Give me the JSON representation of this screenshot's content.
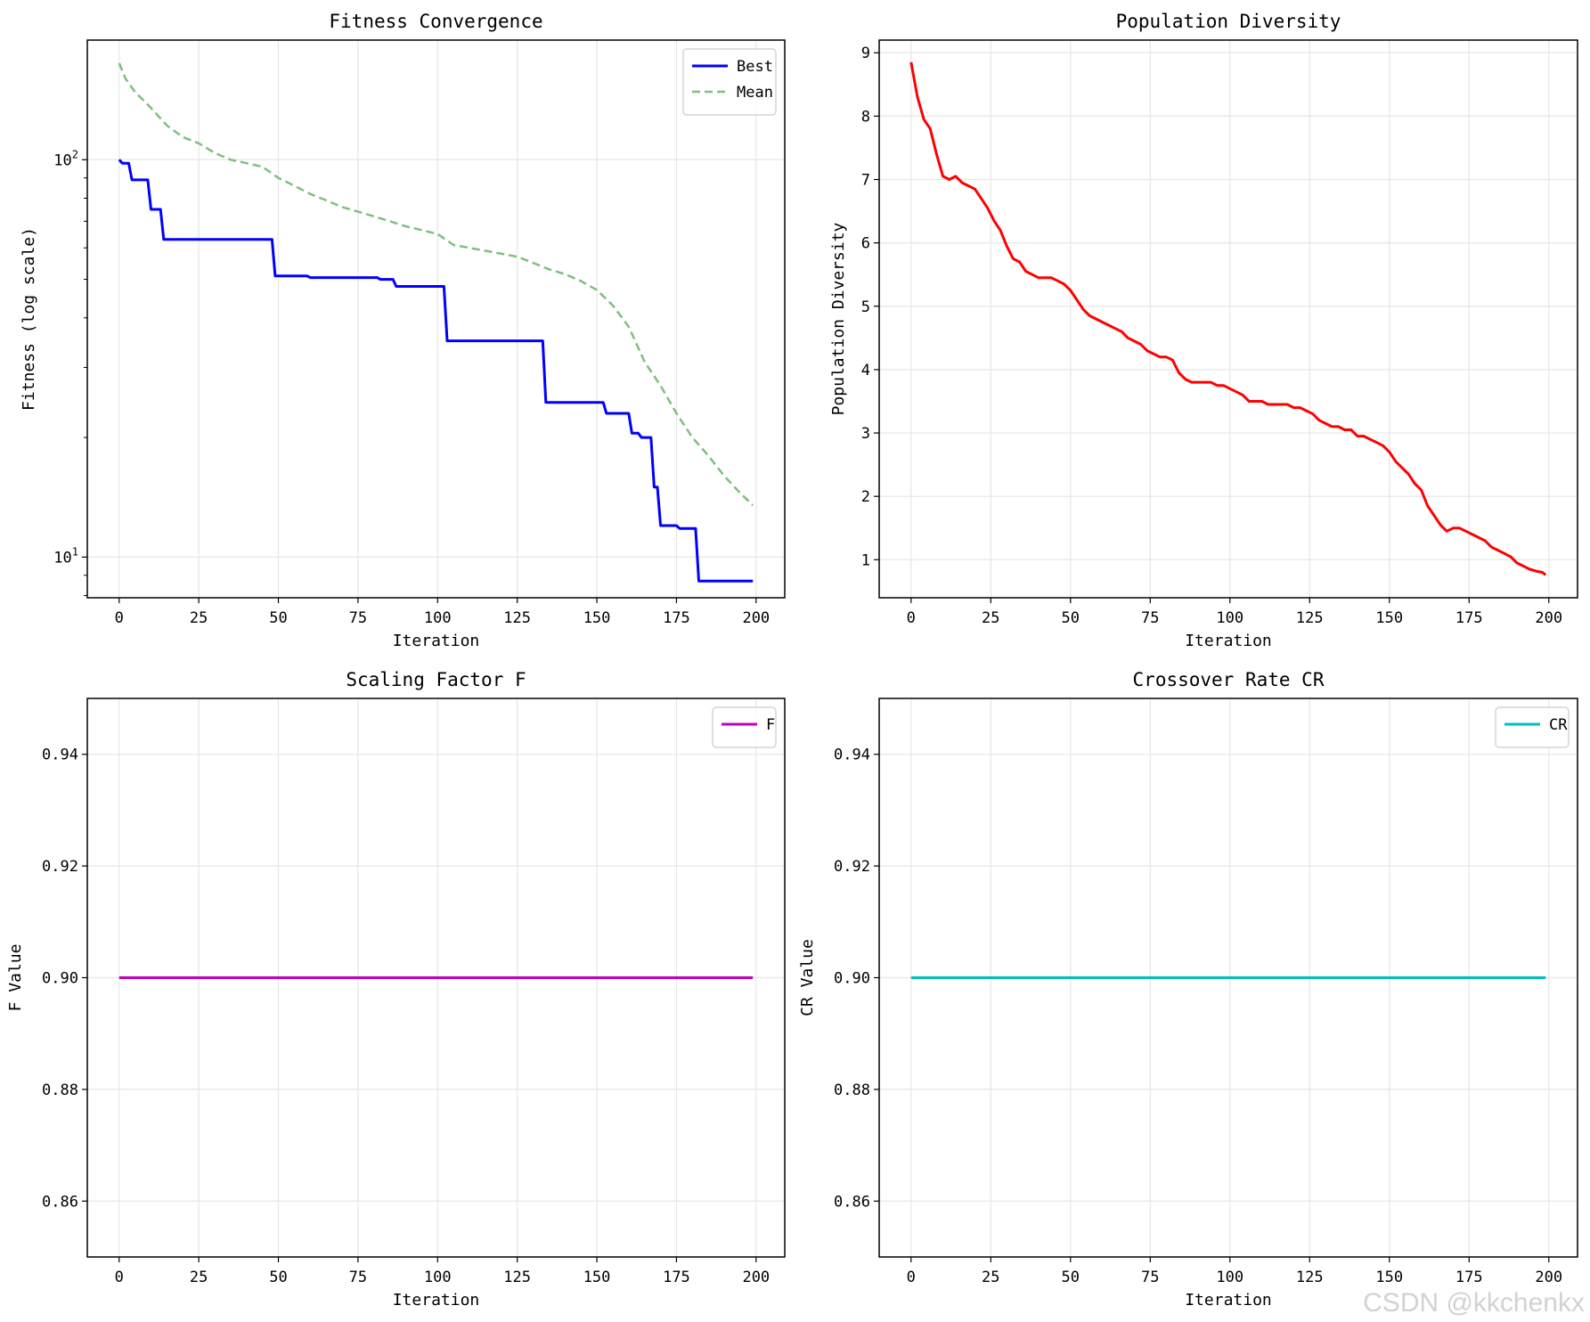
{
  "chart_data": [
    {
      "id": "fitness",
      "type": "line",
      "title": "Fitness Convergence",
      "xlabel": "Iteration",
      "ylabel": "Fitness (log scale)",
      "yscale": "log",
      "xlim": [
        -10,
        209
      ],
      "ylim": [
        7.9,
        200
      ],
      "xticks": [
        0,
        25,
        50,
        75,
        100,
        125,
        150,
        175,
        200
      ],
      "yticks": [
        10,
        100
      ],
      "ytick_labels": [
        {
          "base": "10",
          "exp": "1"
        },
        {
          "base": "10",
          "exp": "2"
        }
      ],
      "legend": "top-right",
      "grid": true,
      "series": [
        {
          "name": "Best",
          "color": "#0000ff",
          "style": "solid",
          "step": true,
          "x": [
            0,
            1,
            3,
            4,
            9,
            10,
            13,
            14,
            48,
            49,
            59,
            60,
            81,
            82,
            86,
            87,
            102,
            103,
            133,
            134,
            152,
            153,
            160,
            161,
            163,
            164,
            167,
            168,
            169,
            170,
            175,
            176,
            181,
            182,
            199
          ],
          "y": [
            100,
            98,
            98,
            89,
            89,
            75,
            75,
            63,
            63,
            51,
            51,
            50.5,
            50.5,
            50,
            50,
            48,
            48,
            35,
            35,
            24.5,
            24.5,
            23,
            23,
            20.5,
            20.5,
            20,
            20,
            15,
            15,
            12,
            12,
            11.8,
            11.8,
            8.7,
            8.7
          ]
        },
        {
          "name": "Mean",
          "color": "#7fbf7f",
          "style": "dashed",
          "step": false,
          "x": [
            0,
            2,
            5,
            10,
            15,
            20,
            25,
            30,
            35,
            40,
            45,
            50,
            55,
            60,
            65,
            70,
            75,
            80,
            85,
            90,
            95,
            100,
            105,
            110,
            115,
            120,
            125,
            130,
            135,
            140,
            145,
            150,
            155,
            160,
            165,
            170,
            175,
            180,
            185,
            190,
            195,
            199
          ],
          "y": [
            175,
            160,
            148,
            135,
            122,
            114,
            110,
            104,
            100,
            98,
            96,
            90,
            86,
            82,
            79,
            76,
            74,
            72,
            70,
            68,
            66.5,
            65,
            61,
            60,
            59,
            58,
            57,
            55,
            53,
            51.5,
            49.5,
            47,
            43,
            38,
            31,
            27,
            23,
            20,
            18,
            16,
            14.5,
            13.5
          ]
        }
      ]
    },
    {
      "id": "diversity",
      "type": "line",
      "title": "Population Diversity",
      "xlabel": "Iteration",
      "ylabel": "Population Diversity",
      "xlim": [
        -10,
        209
      ],
      "ylim": [
        0.4,
        9.2
      ],
      "xticks": [
        0,
        25,
        50,
        75,
        100,
        125,
        150,
        175,
        200
      ],
      "yticks": [
        1,
        2,
        3,
        4,
        5,
        6,
        7,
        8,
        9
      ],
      "grid": true,
      "series": [
        {
          "name": "Population Diversity",
          "color": "#ff0000",
          "style": "solid",
          "x": [
            0,
            2,
            4,
            6,
            8,
            10,
            12,
            14,
            16,
            18,
            20,
            22,
            24,
            26,
            28,
            30,
            32,
            34,
            36,
            38,
            40,
            42,
            44,
            46,
            48,
            50,
            52,
            54,
            56,
            58,
            60,
            62,
            64,
            66,
            68,
            70,
            72,
            74,
            76,
            78,
            80,
            82,
            84,
            86,
            88,
            90,
            92,
            94,
            96,
            98,
            100,
            102,
            104,
            106,
            108,
            110,
            112,
            114,
            116,
            118,
            120,
            122,
            124,
            126,
            128,
            130,
            132,
            134,
            136,
            138,
            140,
            142,
            144,
            146,
            148,
            150,
            152,
            154,
            156,
            158,
            160,
            162,
            164,
            166,
            168,
            170,
            172,
            174,
            176,
            178,
            180,
            182,
            184,
            186,
            188,
            190,
            192,
            194,
            196,
            198,
            199
          ],
          "y": [
            8.85,
            8.3,
            7.95,
            7.8,
            7.4,
            7.05,
            7.0,
            7.05,
            6.95,
            6.9,
            6.85,
            6.7,
            6.55,
            6.35,
            6.2,
            5.95,
            5.75,
            5.7,
            5.55,
            5.5,
            5.45,
            5.45,
            5.45,
            5.4,
            5.35,
            5.25,
            5.1,
            4.95,
            4.85,
            4.8,
            4.75,
            4.7,
            4.65,
            4.6,
            4.5,
            4.45,
            4.4,
            4.3,
            4.25,
            4.2,
            4.2,
            4.15,
            3.95,
            3.85,
            3.8,
            3.8,
            3.8,
            3.8,
            3.75,
            3.75,
            3.7,
            3.65,
            3.6,
            3.5,
            3.5,
            3.5,
            3.45,
            3.45,
            3.45,
            3.45,
            3.4,
            3.4,
            3.35,
            3.3,
            3.2,
            3.15,
            3.1,
            3.1,
            3.05,
            3.05,
            2.95,
            2.95,
            2.9,
            2.85,
            2.8,
            2.7,
            2.55,
            2.45,
            2.35,
            2.2,
            2.1,
            1.85,
            1.7,
            1.55,
            1.45,
            1.5,
            1.5,
            1.45,
            1.4,
            1.35,
            1.3,
            1.2,
            1.15,
            1.1,
            1.05,
            0.95,
            0.9,
            0.85,
            0.82,
            0.8,
            0.76
          ]
        }
      ]
    },
    {
      "id": "scaling",
      "type": "line",
      "title": "Scaling Factor F",
      "xlabel": "Iteration",
      "ylabel": "F Value",
      "xlim": [
        -10,
        209
      ],
      "ylim": [
        0.85,
        0.95
      ],
      "xticks": [
        0,
        25,
        50,
        75,
        100,
        125,
        150,
        175,
        200
      ],
      "yticks": [
        0.86,
        0.88,
        0.9,
        0.92,
        0.94
      ],
      "ytick_labels": [
        "0.86",
        "0.88",
        "0.90",
        "0.92",
        "0.94"
      ],
      "legend": "top-right",
      "grid": true,
      "series": [
        {
          "name": "F",
          "color": "#bf00bf",
          "style": "solid",
          "x": [
            0,
            199
          ],
          "y": [
            0.9,
            0.9
          ]
        }
      ]
    },
    {
      "id": "crossover",
      "type": "line",
      "title": "Crossover Rate CR",
      "xlabel": "Iteration",
      "ylabel": "CR Value",
      "xlim": [
        -10,
        209
      ],
      "ylim": [
        0.85,
        0.95
      ],
      "xticks": [
        0,
        25,
        50,
        75,
        100,
        125,
        150,
        175,
        200
      ],
      "yticks": [
        0.86,
        0.88,
        0.9,
        0.92,
        0.94
      ],
      "ytick_labels": [
        "0.86",
        "0.88",
        "0.90",
        "0.92",
        "0.94"
      ],
      "legend": "top-right",
      "grid": true,
      "series": [
        {
          "name": "CR",
          "color": "#00bfbf",
          "style": "solid",
          "x": [
            0,
            199
          ],
          "y": [
            0.9,
            0.9
          ]
        }
      ]
    }
  ],
  "watermark": "CSDN @kkchenkx"
}
